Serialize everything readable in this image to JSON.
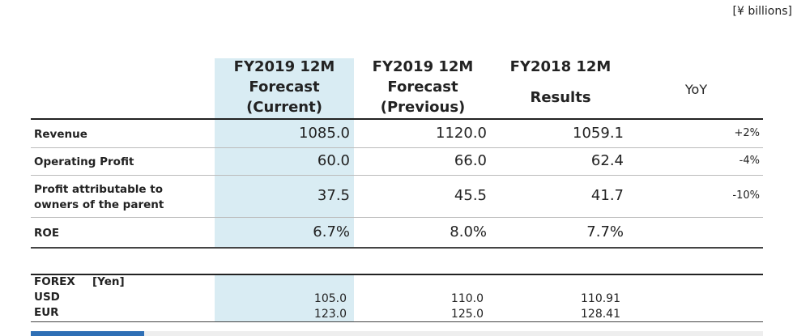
{
  "unit": "[¥ billions]",
  "columns": [
    {
      "lines": [
        "FY2019 12M",
        "Forecast",
        "(Current)"
      ]
    },
    {
      "lines": [
        "FY2019 12M",
        "Forecast",
        "(Previous)"
      ]
    },
    {
      "lines": [
        "FY2018 12M",
        "Results"
      ]
    },
    {
      "lines": [
        "YoY"
      ]
    }
  ],
  "rows": [
    {
      "label": [
        "Revenue"
      ],
      "values": [
        "1085.0",
        "1120.0",
        "1059.1"
      ],
      "yoy": "+2%"
    },
    {
      "label": [
        "Operating Profit"
      ],
      "values": [
        "60.0",
        "66.0",
        "62.4"
      ],
      "yoy": "-4%"
    },
    {
      "label": [
        "Profit attributable to",
        "owners of the parent"
      ],
      "values": [
        "37.5",
        "45.5",
        "41.7"
      ],
      "yoy": "-10%"
    },
    {
      "label": [
        "ROE"
      ],
      "values": [
        "6.7%",
        "8.0%",
        "7.7%"
      ]
    }
  ],
  "forex": {
    "title": "FOREX",
    "unit": "[Yen]",
    "rows": [
      {
        "label": "USD",
        "values": [
          "105.0",
          "110.0",
          "110.91"
        ]
      },
      {
        "label": "EUR",
        "values": [
          "123.0",
          "125.0",
          "128.41"
        ]
      }
    ]
  }
}
